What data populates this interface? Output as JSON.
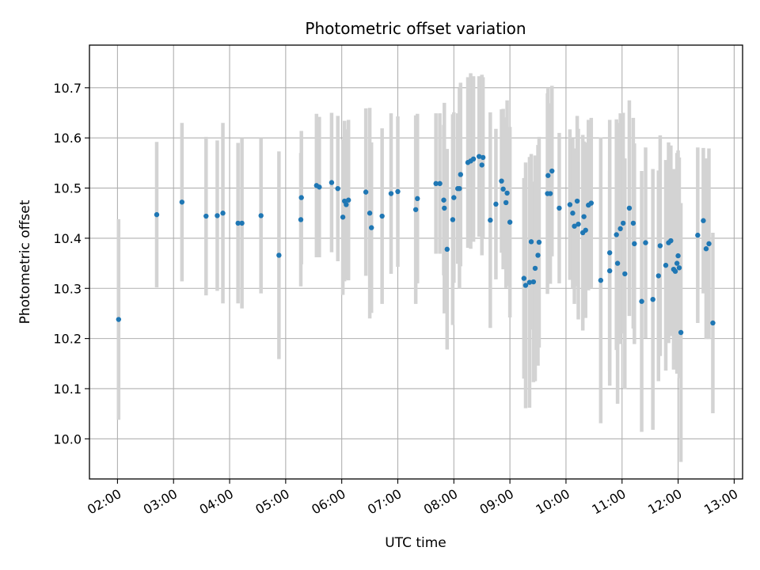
{
  "chart_data": {
    "type": "scatter",
    "title": "Photometric offset variation",
    "xlabel": "UTC time",
    "ylabel": "Photometric offset",
    "x_unit": "hours UTC",
    "xlim": [
      1.5,
      13.15
    ],
    "ylim": [
      9.92,
      10.785
    ],
    "xticks": [
      {
        "value": 2,
        "label": "02:00"
      },
      {
        "value": 3,
        "label": "03:00"
      },
      {
        "value": 4,
        "label": "04:00"
      },
      {
        "value": 5,
        "label": "05:00"
      },
      {
        "value": 6,
        "label": "06:00"
      },
      {
        "value": 7,
        "label": "07:00"
      },
      {
        "value": 8,
        "label": "08:00"
      },
      {
        "value": 9,
        "label": "09:00"
      },
      {
        "value": 10,
        "label": "10:00"
      },
      {
        "value": 11,
        "label": "11:00"
      },
      {
        "value": 12,
        "label": "12:00"
      },
      {
        "value": 13,
        "label": "13:00"
      }
    ],
    "yticks": [
      {
        "value": 10.0,
        "label": "10.0"
      },
      {
        "value": 10.1,
        "label": "10.1"
      },
      {
        "value": 10.2,
        "label": "10.2"
      },
      {
        "value": 10.3,
        "label": "10.3"
      },
      {
        "value": 10.4,
        "label": "10.4"
      },
      {
        "value": 10.5,
        "label": "10.5"
      },
      {
        "value": 10.6,
        "label": "10.6"
      },
      {
        "value": 10.7,
        "label": "10.7"
      }
    ],
    "grid": true,
    "point_color": "#1f77b4",
    "errorbar_color": "#d3d3d3",
    "points": [
      [
        2.02,
        10.238,
        0.2
      ],
      [
        2.7,
        10.447,
        0.145
      ],
      [
        3.15,
        10.472,
        0.158
      ],
      [
        3.58,
        10.444,
        0.158
      ],
      [
        3.78,
        10.445,
        0.15
      ],
      [
        3.88,
        10.45,
        0.18
      ],
      [
        4.15,
        10.43,
        0.16
      ],
      [
        4.22,
        10.43,
        0.17
      ],
      [
        4.56,
        10.445,
        0.155
      ],
      [
        4.88,
        10.366,
        0.207
      ],
      [
        5.27,
        10.437,
        0.133
      ],
      [
        5.28,
        10.481,
        0.133
      ],
      [
        5.55,
        10.505,
        0.143
      ],
      [
        5.6,
        10.502,
        0.14
      ],
      [
        5.82,
        10.511,
        0.139
      ],
      [
        5.93,
        10.499,
        0.145
      ],
      [
        6.02,
        10.442,
        0.155
      ],
      [
        6.05,
        10.474,
        0.16
      ],
      [
        6.08,
        10.467,
        0.15
      ],
      [
        6.12,
        10.476,
        0.16
      ],
      [
        6.43,
        10.492,
        0.167
      ],
      [
        6.5,
        10.45,
        0.21
      ],
      [
        6.53,
        10.421,
        0.17
      ],
      [
        6.72,
        10.444,
        0.175
      ],
      [
        6.88,
        10.489,
        0.16
      ],
      [
        7.0,
        10.493,
        0.15
      ],
      [
        7.32,
        10.457,
        0.188
      ],
      [
        7.35,
        10.479,
        0.169
      ],
      [
        7.68,
        10.509,
        0.14
      ],
      [
        7.75,
        10.509,
        0.14
      ],
      [
        7.82,
        10.476,
        0.15
      ],
      [
        7.83,
        10.46,
        0.21
      ],
      [
        7.88,
        10.378,
        0.2
      ],
      [
        7.98,
        10.437,
        0.21
      ],
      [
        8.0,
        10.481,
        0.17
      ],
      [
        8.07,
        10.499,
        0.15
      ],
      [
        8.1,
        10.499,
        0.2
      ],
      [
        8.12,
        10.527,
        0.183
      ],
      [
        8.25,
        10.551,
        0.17
      ],
      [
        8.3,
        10.554,
        0.175
      ],
      [
        8.35,
        10.558,
        0.165
      ],
      [
        8.45,
        10.563,
        0.16
      ],
      [
        8.5,
        10.546,
        0.18
      ],
      [
        8.52,
        10.561,
        0.16
      ],
      [
        8.65,
        10.436,
        0.215
      ],
      [
        8.75,
        10.468,
        0.15
      ],
      [
        8.85,
        10.514,
        0.143
      ],
      [
        8.88,
        10.498,
        0.16
      ],
      [
        8.93,
        10.471,
        0.17
      ],
      [
        8.95,
        10.49,
        0.185
      ],
      [
        9.0,
        10.432,
        0.19
      ],
      [
        9.25,
        10.32,
        0.2
      ],
      [
        9.28,
        10.306,
        0.245
      ],
      [
        9.35,
        10.312,
        0.25
      ],
      [
        9.38,
        10.393,
        0.175
      ],
      [
        9.42,
        10.313,
        0.2
      ],
      [
        9.45,
        10.34,
        0.225
      ],
      [
        9.5,
        10.366,
        0.22
      ],
      [
        9.52,
        10.392,
        0.21
      ],
      [
        9.67,
        10.489,
        0.2
      ],
      [
        9.68,
        10.525,
        0.175
      ],
      [
        9.72,
        10.489,
        0.18
      ],
      [
        9.75,
        10.534,
        0.17
      ],
      [
        9.88,
        10.46,
        0.15
      ],
      [
        10.07,
        10.467,
        0.15
      ],
      [
        10.12,
        10.45,
        0.15
      ],
      [
        10.15,
        10.424,
        0.155
      ],
      [
        10.2,
        10.474,
        0.17
      ],
      [
        10.22,
        10.428,
        0.19
      ],
      [
        10.3,
        10.411,
        0.195
      ],
      [
        10.32,
        10.443,
        0.15
      ],
      [
        10.35,
        10.416,
        0.175
      ],
      [
        10.4,
        10.466,
        0.17
      ],
      [
        10.45,
        10.47,
        0.17
      ],
      [
        10.62,
        10.316,
        0.285
      ],
      [
        10.78,
        10.335,
        0.2
      ],
      [
        10.78,
        10.371,
        0.265
      ],
      [
        10.9,
        10.407,
        0.23
      ],
      [
        10.92,
        10.35,
        0.28
      ],
      [
        10.97,
        10.419,
        0.23
      ],
      [
        11.02,
        10.43,
        0.22
      ],
      [
        11.05,
        10.329,
        0.23
      ],
      [
        11.13,
        10.46,
        0.215
      ],
      [
        11.2,
        10.43,
        0.21
      ],
      [
        11.22,
        10.389,
        0.2
      ],
      [
        11.35,
        10.274,
        0.26
      ],
      [
        11.42,
        10.391,
        0.19
      ],
      [
        11.55,
        10.278,
        0.26
      ],
      [
        11.65,
        10.325,
        0.21
      ],
      [
        11.68,
        10.385,
        0.22
      ],
      [
        11.78,
        10.346,
        0.21
      ],
      [
        11.83,
        10.391,
        0.2
      ],
      [
        11.87,
        10.395,
        0.19
      ],
      [
        11.92,
        10.338,
        0.2
      ],
      [
        11.95,
        10.334,
        0.17
      ],
      [
        11.98,
        10.35,
        0.22
      ],
      [
        12.0,
        10.365,
        0.21
      ],
      [
        12.02,
        10.341,
        0.22
      ],
      [
        12.05,
        10.212,
        0.258
      ],
      [
        12.35,
        10.406,
        0.175
      ],
      [
        12.45,
        10.435,
        0.145
      ],
      [
        12.5,
        10.379,
        0.18
      ],
      [
        12.55,
        10.389,
        0.19
      ],
      [
        12.62,
        10.231,
        0.18
      ]
    ]
  }
}
